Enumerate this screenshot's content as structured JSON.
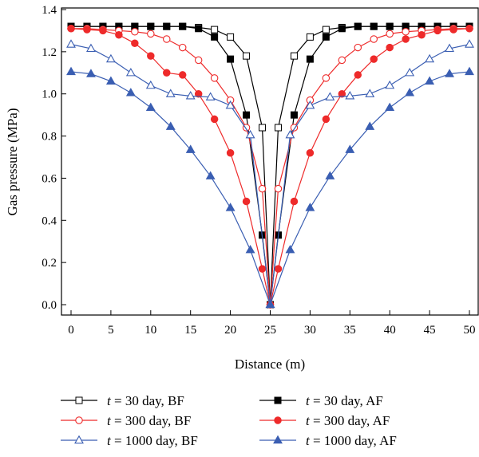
{
  "chart_data": {
    "type": "line",
    "xlabel": "Distance (m)",
    "ylabel": "Gas pressure (MPa)",
    "xlim": [
      0,
      50
    ],
    "ylim": [
      0,
      1.4
    ],
    "x_ticks": [
      0,
      5,
      10,
      15,
      20,
      25,
      30,
      35,
      40,
      45,
      50
    ],
    "y_ticks": [
      0.0,
      0.2,
      0.4,
      0.6,
      0.8,
      1.0,
      1.2,
      1.4
    ],
    "x_tick_labels": [
      "0",
      "5",
      "10",
      "15",
      "20",
      "25",
      "30",
      "35",
      "40",
      "45",
      "50"
    ],
    "y_tick_labels": [
      "0.0",
      "0.2",
      "0.4",
      "0.6",
      "0.8",
      "1.0",
      "1.2",
      "1.4"
    ],
    "grid": false,
    "legend_position": "bottom",
    "series": [
      {
        "name_prefix": "t",
        "name_suffix": " = 30 day, BF",
        "color": "#000000",
        "marker": "square",
        "filled": false,
        "points": [
          [
            0,
            1.32
          ],
          [
            2,
            1.32
          ],
          [
            4,
            1.32
          ],
          [
            6,
            1.32
          ],
          [
            8,
            1.32
          ],
          [
            10,
            1.32
          ],
          [
            12,
            1.32
          ],
          [
            14,
            1.32
          ],
          [
            16,
            1.315
          ],
          [
            18,
            1.305
          ],
          [
            20,
            1.27
          ],
          [
            22,
            1.18
          ],
          [
            24,
            0.84
          ],
          [
            25,
            0.0
          ],
          [
            26,
            0.84
          ],
          [
            28,
            1.18
          ],
          [
            30,
            1.27
          ],
          [
            32,
            1.305
          ],
          [
            34,
            1.315
          ],
          [
            36,
            1.32
          ],
          [
            38,
            1.32
          ],
          [
            40,
            1.32
          ],
          [
            42,
            1.32
          ],
          [
            44,
            1.32
          ],
          [
            46,
            1.32
          ],
          [
            48,
            1.32
          ],
          [
            50,
            1.32
          ]
        ]
      },
      {
        "name_prefix": "t",
        "name_suffix": " = 30 day, AF",
        "color": "#000000",
        "marker": "square",
        "filled": true,
        "points": [
          [
            0,
            1.32
          ],
          [
            2,
            1.32
          ],
          [
            4,
            1.32
          ],
          [
            6,
            1.32
          ],
          [
            8,
            1.32
          ],
          [
            10,
            1.32
          ],
          [
            12,
            1.32
          ],
          [
            14,
            1.32
          ],
          [
            16,
            1.31
          ],
          [
            18,
            1.27
          ],
          [
            20,
            1.165
          ],
          [
            22,
            0.9
          ],
          [
            24,
            0.33
          ],
          [
            25,
            0.0
          ],
          [
            26,
            0.33
          ],
          [
            28,
            0.9
          ],
          [
            30,
            1.165
          ],
          [
            32,
            1.27
          ],
          [
            34,
            1.31
          ],
          [
            36,
            1.32
          ],
          [
            38,
            1.32
          ],
          [
            40,
            1.32
          ],
          [
            42,
            1.32
          ],
          [
            44,
            1.32
          ],
          [
            46,
            1.32
          ],
          [
            48,
            1.32
          ],
          [
            50,
            1.32
          ]
        ]
      },
      {
        "name_prefix": "t",
        "name_suffix": " = 300 day, BF",
        "color": "#ee2a2a",
        "marker": "circle",
        "filled": false,
        "points": [
          [
            0,
            1.31
          ],
          [
            2,
            1.31
          ],
          [
            4,
            1.305
          ],
          [
            6,
            1.3
          ],
          [
            8,
            1.295
          ],
          [
            10,
            1.285
          ],
          [
            12,
            1.26
          ],
          [
            14,
            1.22
          ],
          [
            16,
            1.16
          ],
          [
            18,
            1.075
          ],
          [
            20,
            0.97
          ],
          [
            22,
            0.84
          ],
          [
            24,
            0.55
          ],
          [
            25,
            0.0
          ],
          [
            26,
            0.55
          ],
          [
            28,
            0.84
          ],
          [
            30,
            0.97
          ],
          [
            32,
            1.075
          ],
          [
            34,
            1.16
          ],
          [
            36,
            1.22
          ],
          [
            38,
            1.26
          ],
          [
            40,
            1.285
          ],
          [
            42,
            1.295
          ],
          [
            44,
            1.3
          ],
          [
            46,
            1.305
          ],
          [
            48,
            1.31
          ],
          [
            50,
            1.31
          ]
        ]
      },
      {
        "name_prefix": "t",
        "name_suffix": " = 300 day, AF",
        "color": "#ee2a2a",
        "marker": "circle",
        "filled": true,
        "points": [
          [
            0,
            1.31
          ],
          [
            2,
            1.305
          ],
          [
            4,
            1.3
          ],
          [
            6,
            1.28
          ],
          [
            8,
            1.24
          ],
          [
            10,
            1.18
          ],
          [
            12,
            1.1
          ],
          [
            14,
            1.09
          ],
          [
            16,
            1.0
          ],
          [
            18,
            0.88
          ],
          [
            20,
            0.72
          ],
          [
            22,
            0.49
          ],
          [
            24,
            0.17
          ],
          [
            25,
            0.0
          ],
          [
            26,
            0.17
          ],
          [
            28,
            0.49
          ],
          [
            30,
            0.72
          ],
          [
            32,
            0.88
          ],
          [
            34,
            1.0
          ],
          [
            36,
            1.09
          ],
          [
            38,
            1.165
          ],
          [
            40,
            1.22
          ],
          [
            42,
            1.26
          ],
          [
            44,
            1.28
          ],
          [
            46,
            1.3
          ],
          [
            48,
            1.305
          ],
          [
            50,
            1.31
          ]
        ]
      },
      {
        "name_prefix": "t",
        "name_suffix": " = 1000 day, BF",
        "color": "#3a5eb2",
        "marker": "triangle",
        "filled": false,
        "points": [
          [
            0,
            1.235
          ],
          [
            2.5,
            1.215
          ],
          [
            5,
            1.165
          ],
          [
            7.5,
            1.1
          ],
          [
            10,
            1.04
          ],
          [
            12.5,
            1.0
          ],
          [
            15,
            0.99
          ],
          [
            17.5,
            0.985
          ],
          [
            20,
            0.945
          ],
          [
            22.5,
            0.805
          ],
          [
            25,
            0.0
          ],
          [
            27.5,
            0.805
          ],
          [
            30,
            0.945
          ],
          [
            32.5,
            0.985
          ],
          [
            35,
            0.99
          ],
          [
            37.5,
            1.0
          ],
          [
            40,
            1.04
          ],
          [
            42.5,
            1.1
          ],
          [
            45,
            1.165
          ],
          [
            47.5,
            1.215
          ],
          [
            50,
            1.235
          ]
        ]
      },
      {
        "name_prefix": "t",
        "name_suffix": " = 1000 day, AF",
        "color": "#3a5eb2",
        "marker": "triangle",
        "filled": true,
        "points": [
          [
            0,
            1.105
          ],
          [
            2.5,
            1.095
          ],
          [
            5,
            1.06
          ],
          [
            7.5,
            1.005
          ],
          [
            10,
            0.935
          ],
          [
            12.5,
            0.845
          ],
          [
            15,
            0.735
          ],
          [
            17.5,
            0.61
          ],
          [
            20,
            0.46
          ],
          [
            22.5,
            0.26
          ],
          [
            25,
            0.0
          ],
          [
            27.5,
            0.26
          ],
          [
            30,
            0.46
          ],
          [
            32.5,
            0.61
          ],
          [
            35,
            0.735
          ],
          [
            37.5,
            0.845
          ],
          [
            40,
            0.935
          ],
          [
            42.5,
            1.005
          ],
          [
            45,
            1.06
          ],
          [
            47.5,
            1.095
          ],
          [
            50,
            1.105
          ]
        ]
      }
    ]
  }
}
